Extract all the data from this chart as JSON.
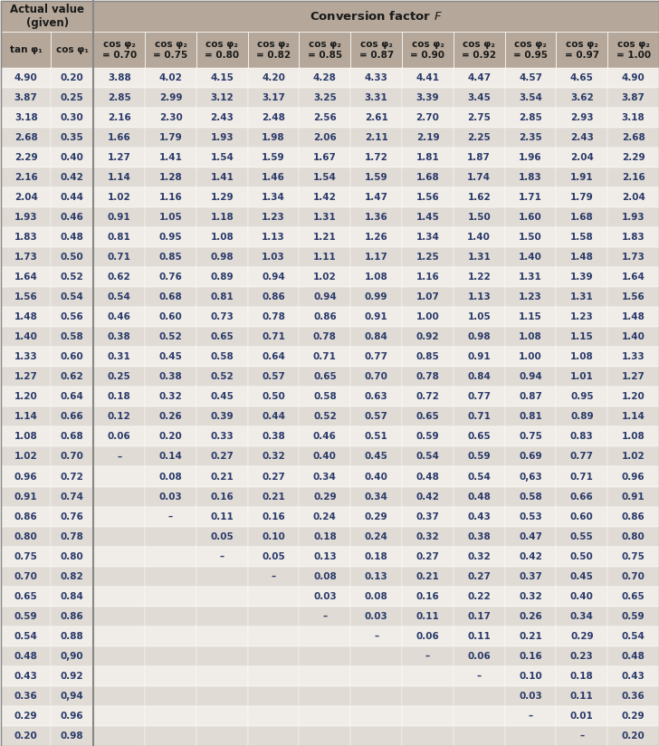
{
  "title_left": "Actual value\n(given)",
  "title_right": "Conversion factor F",
  "col_headers": [
    "tan φ₁",
    "cos φ₁",
    "cos φ₂\n= 0.70",
    "cos φ₂\n= 0.75",
    "cos φ₂\n= 0.80",
    "cos φ₂\n= 0.82",
    "cos φ₂\n= 0.85",
    "cos φ₂\n= 0.87",
    "cos φ₂\n= 0.90",
    "cos φ₂\n= 0.92",
    "cos φ₂\n= 0.95",
    "cos φ₂\n= 0.97",
    "cos φ₂\n= 1.00"
  ],
  "rows": [
    [
      "4.90",
      "0.20",
      "3.88",
      "4.02",
      "4.15",
      "4.20",
      "4.28",
      "4.33",
      "4.41",
      "4.47",
      "4.57",
      "4.65",
      "4.90"
    ],
    [
      "3.87",
      "0.25",
      "2.85",
      "2.99",
      "3.12",
      "3.17",
      "3.25",
      "3.31",
      "3.39",
      "3.45",
      "3.54",
      "3.62",
      "3.87"
    ],
    [
      "3.18",
      "0.30",
      "2.16",
      "2.30",
      "2.43",
      "2.48",
      "2.56",
      "2.61",
      "2.70",
      "2.75",
      "2.85",
      "2.93",
      "3.18"
    ],
    [
      "2.68",
      "0.35",
      "1.66",
      "1.79",
      "1.93",
      "1.98",
      "2.06",
      "2.11",
      "2.19",
      "2.25",
      "2.35",
      "2.43",
      "2.68"
    ],
    [
      "2.29",
      "0.40",
      "1.27",
      "1.41",
      "1.54",
      "1.59",
      "1.67",
      "1.72",
      "1.81",
      "1.87",
      "1.96",
      "2.04",
      "2.29"
    ],
    [
      "2.16",
      "0.42",
      "1.14",
      "1.28",
      "1.41",
      "1.46",
      "1.54",
      "1.59",
      "1.68",
      "1.74",
      "1.83",
      "1.91",
      "2.16"
    ],
    [
      "2.04",
      "0.44",
      "1.02",
      "1.16",
      "1.29",
      "1.34",
      "1.42",
      "1.47",
      "1.56",
      "1.62",
      "1.71",
      "1.79",
      "2.04"
    ],
    [
      "1.93",
      "0.46",
      "0.91",
      "1.05",
      "1.18",
      "1.23",
      "1.31",
      "1.36",
      "1.45",
      "1.50",
      "1.60",
      "1.68",
      "1.93"
    ],
    [
      "1.83",
      "0.48",
      "0.81",
      "0.95",
      "1.08",
      "1.13",
      "1.21",
      "1.26",
      "1.34",
      "1.40",
      "1.50",
      "1.58",
      "1.83"
    ],
    [
      "1.73",
      "0.50",
      "0.71",
      "0.85",
      "0.98",
      "1.03",
      "1.11",
      "1.17",
      "1.25",
      "1.31",
      "1.40",
      "1.48",
      "1.73"
    ],
    [
      "1.64",
      "0.52",
      "0.62",
      "0.76",
      "0.89",
      "0.94",
      "1.02",
      "1.08",
      "1.16",
      "1.22",
      "1.31",
      "1.39",
      "1.64"
    ],
    [
      "1.56",
      "0.54",
      "0.54",
      "0.68",
      "0.81",
      "0.86",
      "0.94",
      "0.99",
      "1.07",
      "1.13",
      "1.23",
      "1.31",
      "1.56"
    ],
    [
      "1.48",
      "0.56",
      "0.46",
      "0.60",
      "0.73",
      "0.78",
      "0.86",
      "0.91",
      "1.00",
      "1.05",
      "1.15",
      "1.23",
      "1.48"
    ],
    [
      "1.40",
      "0.58",
      "0.38",
      "0.52",
      "0.65",
      "0.71",
      "0.78",
      "0.84",
      "0.92",
      "0.98",
      "1.08",
      "1.15",
      "1.40"
    ],
    [
      "1.33",
      "0.60",
      "0.31",
      "0.45",
      "0.58",
      "0.64",
      "0.71",
      "0.77",
      "0.85",
      "0.91",
      "1.00",
      "1.08",
      "1.33"
    ],
    [
      "1.27",
      "0.62",
      "0.25",
      "0.38",
      "0.52",
      "0.57",
      "0.65",
      "0.70",
      "0.78",
      "0.84",
      "0.94",
      "1.01",
      "1.27"
    ],
    [
      "1.20",
      "0.64",
      "0.18",
      "0.32",
      "0.45",
      "0.50",
      "0.58",
      "0.63",
      "0.72",
      "0.77",
      "0.87",
      "0.95",
      "1.20"
    ],
    [
      "1.14",
      "0.66",
      "0.12",
      "0.26",
      "0.39",
      "0.44",
      "0.52",
      "0.57",
      "0.65",
      "0.71",
      "0.81",
      "0.89",
      "1.14"
    ],
    [
      "1.08",
      "0.68",
      "0.06",
      "0.20",
      "0.33",
      "0.38",
      "0.46",
      "0.51",
      "0.59",
      "0.65",
      "0.75",
      "0.83",
      "1.08"
    ],
    [
      "1.02",
      "0.70",
      "–",
      "0.14",
      "0.27",
      "0.32",
      "0.40",
      "0.45",
      "0.54",
      "0.59",
      "0.69",
      "0.77",
      "1.02"
    ],
    [
      "0.96",
      "0.72",
      "",
      "0.08",
      "0.21",
      "0.27",
      "0.34",
      "0.40",
      "0.48",
      "0.54",
      "0,63",
      "0.71",
      "0.96"
    ],
    [
      "0.91",
      "0.74",
      "",
      "0.03",
      "0.16",
      "0.21",
      "0.29",
      "0.34",
      "0.42",
      "0.48",
      "0.58",
      "0.66",
      "0.91"
    ],
    [
      "0.86",
      "0.76",
      "",
      "–",
      "0.11",
      "0.16",
      "0.24",
      "0.29",
      "0.37",
      "0.43",
      "0.53",
      "0.60",
      "0.86"
    ],
    [
      "0.80",
      "0.78",
      "",
      "",
      "0.05",
      "0.10",
      "0.18",
      "0.24",
      "0.32",
      "0.38",
      "0.47",
      "0.55",
      "0.80"
    ],
    [
      "0.75",
      "0.80",
      "",
      "",
      "–",
      "0.05",
      "0.13",
      "0.18",
      "0.27",
      "0.32",
      "0.42",
      "0.50",
      "0.75"
    ],
    [
      "0.70",
      "0.82",
      "",
      "",
      "",
      "–",
      "0.08",
      "0.13",
      "0.21",
      "0.27",
      "0.37",
      "0.45",
      "0.70"
    ],
    [
      "0.65",
      "0.84",
      "",
      "",
      "",
      "",
      "0.03",
      "0.08",
      "0.16",
      "0.22",
      "0.32",
      "0.40",
      "0.65"
    ],
    [
      "0.59",
      "0.86",
      "",
      "",
      "",
      "",
      "–",
      "0.03",
      "0.11",
      "0.17",
      "0.26",
      "0.34",
      "0.59"
    ],
    [
      "0.54",
      "0.88",
      "",
      "",
      "",
      "",
      "",
      "–",
      "0.06",
      "0.11",
      "0.21",
      "0.29",
      "0.54"
    ],
    [
      "0.48",
      "0,90",
      "",
      "",
      "",
      "",
      "",
      "",
      "–",
      "0.06",
      "0.16",
      "0.23",
      "0.48"
    ],
    [
      "0.43",
      "0.92",
      "",
      "",
      "",
      "",
      "",
      "",
      "",
      "–",
      "0.10",
      "0.18",
      "0.43"
    ],
    [
      "0.36",
      "0,94",
      "",
      "",
      "",
      "",
      "",
      "",
      "",
      "",
      "0.03",
      "0.11",
      "0.36"
    ],
    [
      "0.29",
      "0.96",
      "",
      "",
      "",
      "",
      "",
      "",
      "",
      "",
      "–",
      "0.01",
      "0.29"
    ],
    [
      "0.20",
      "0.98",
      "",
      "",
      "",
      "",
      "",
      "",
      "",
      "",
      "",
      "–",
      "0.20"
    ]
  ],
  "header_bg": "#b5a89a",
  "col_header_bg": "#b5a89a",
  "row_even_bg": "#f0ede8",
  "row_odd_bg": "#e0dbd4",
  "text_color": "#2a3a6a",
  "header_text_color": "#1a1a1a",
  "grid_color": "#ffffff",
  "font_size": 7.5,
  "header_font_size": 8.5
}
